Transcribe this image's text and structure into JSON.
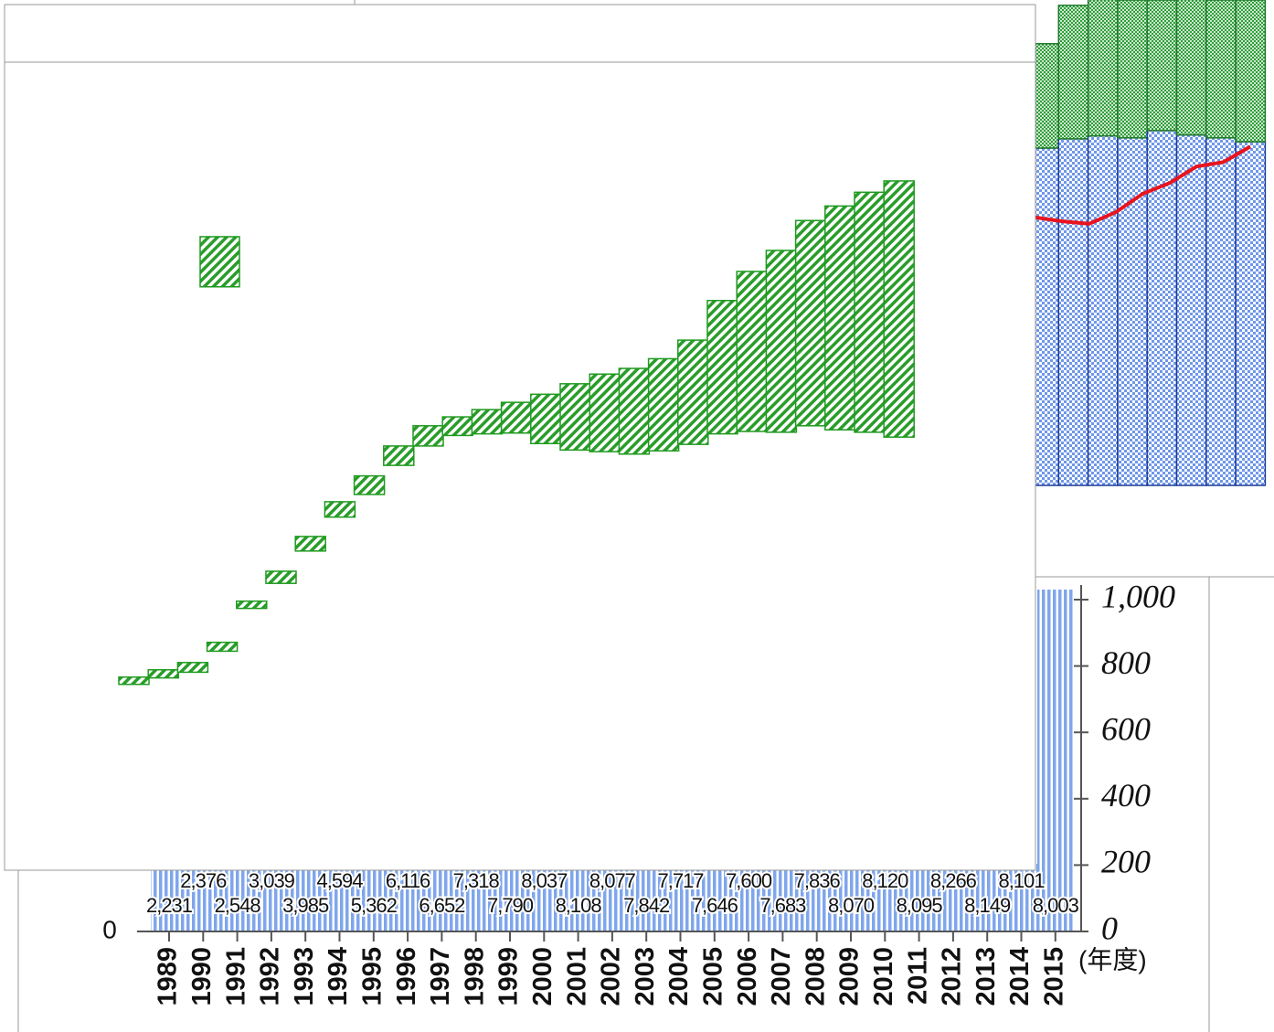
{
  "background_chart": {
    "years": [
      "1989",
      "1990",
      "1991",
      "1992",
      "1993",
      "1994",
      "1995",
      "1996",
      "1997",
      "1998",
      "1999",
      "2000",
      "2001",
      "2002",
      "2003",
      "2004",
      "2005",
      "2006",
      "2007",
      "2008",
      "2009",
      "2010",
      "2011",
      "2012",
      "2013",
      "2014",
      "2015"
    ],
    "value_labels": [
      "2,231",
      "2,376",
      "2,548",
      "3,039",
      "3,985",
      "4,594",
      "5,362",
      "6,116",
      "6,652",
      "7,318",
      "7,790",
      "8,037",
      "8,108",
      "8,077",
      "7,842",
      "7,717",
      "7,646",
      "7,600",
      "7,683",
      "7,836",
      "8,070",
      "8,120",
      "8,095",
      "8,266",
      "8,149",
      "8,101",
      "8,003"
    ],
    "yticks": [
      0
    ],
    "y2lim": [
      0,
      1000
    ],
    "y2ticks": [
      0,
      200,
      400,
      600,
      800,
      {
        "value": 1000,
        "label": "1,000"
      }
    ],
    "x_unit": "(年度)"
  },
  "foreground_chart": {
    "type": "floating-bar",
    "ylim": [
      0,
      100
    ],
    "color": "#1f9a1f",
    "ranges": [
      [
        23.0,
        23.9
      ],
      [
        23.8,
        24.8
      ],
      [
        24.5,
        25.7
      ],
      [
        27.1,
        28.2
      ],
      [
        32.4,
        33.3
      ],
      [
        35.5,
        37.0
      ],
      [
        39.5,
        41.3
      ],
      [
        43.7,
        45.6
      ],
      [
        46.5,
        48.8
      ],
      [
        50.1,
        52.5
      ],
      [
        52.5,
        55.0
      ],
      [
        53.8,
        56.1
      ],
      [
        54.0,
        57.0
      ],
      [
        54.1,
        57.9
      ],
      [
        52.8,
        58.9
      ],
      [
        52.0,
        60.2
      ],
      [
        51.8,
        61.4
      ],
      [
        51.5,
        62.1
      ],
      [
        51.9,
        63.3
      ],
      [
        52.7,
        65.6
      ],
      [
        54.0,
        70.5
      ],
      [
        54.3,
        74.1
      ],
      [
        54.2,
        76.7
      ],
      [
        55.0,
        80.4
      ],
      [
        54.5,
        82.2
      ],
      [
        54.2,
        83.9
      ],
      [
        53.6,
        85.3
      ]
    ],
    "outlier": [
      72.2,
      78.4
    ]
  },
  "top_right_chart": {
    "type": "stacked-bar-line",
    "ylim": [
      0,
      100
    ],
    "series": [
      {
        "color": "#6f97e8",
        "values": [
          69.5,
          71.4,
          72.0,
          71.6,
          73.1,
          72.2,
          71.6,
          70.8
        ]
      },
      {
        "color": "#2e9e3a",
        "values": [
          21.5,
          27.5,
          28.1,
          28.4,
          26.9,
          27.9,
          28.4,
          29.2
        ]
      }
    ],
    "line": {
      "color": "#e8141e",
      "values": [
        55.2,
        54.4,
        53.9,
        56.3,
        60.1,
        62.3,
        65.7,
        66.6,
        69.8
      ]
    }
  }
}
